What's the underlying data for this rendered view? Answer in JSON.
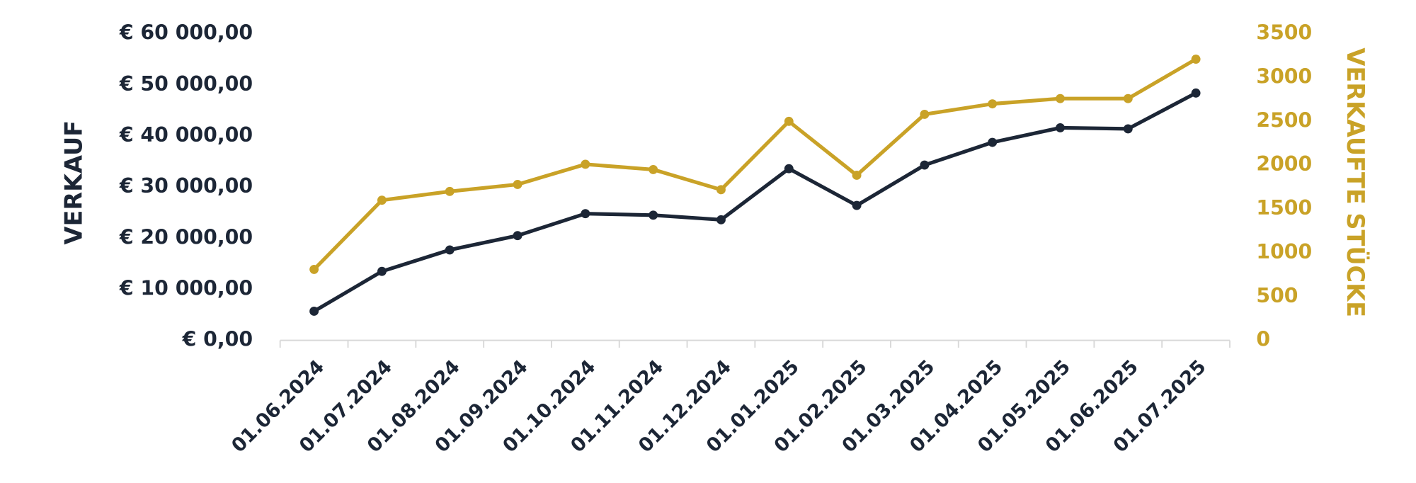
{
  "chart_data": {
    "type": "line",
    "y_axis_label": "VERKAUF",
    "y2_axis_label": "VERKAUFTE STÜCKE",
    "categories": [
      "01.06.2024",
      "01.07.2024",
      "01.08.2024",
      "01.09.2024",
      "01.10.2024",
      "01.11.2024",
      "01.12.2024",
      "01.01.2025",
      "01.02.2025",
      "01.03.2025",
      "01.04.2025",
      "01.05.2025",
      "01.06.2025",
      "01.07.2025"
    ],
    "series": [
      {
        "color": "#1c2636",
        "values": [
          5700,
          13500,
          17700,
          20500,
          24800,
          24500,
          23600,
          33600,
          26400,
          34300,
          38750,
          41600,
          41400,
          48400
        ]
      },
      {
        "color": "#c9a227",
        "axis": "y2",
        "values": [
          810,
          1600,
          1700,
          1780,
          2010,
          1950,
          1720,
          2500,
          1885,
          2580,
          2700,
          2760,
          2760,
          3210
        ]
      }
    ],
    "ylim": [
      0,
      60000
    ],
    "yticks": [
      {
        "value": 0,
        "label": "€ 0,00"
      },
      {
        "value": 10000,
        "label": "€ 10 000,00"
      },
      {
        "value": 20000,
        "label": "€ 20 000,00"
      },
      {
        "value": 30000,
        "label": "€ 30 000,00"
      },
      {
        "value": 40000,
        "label": "€ 40 000,00"
      },
      {
        "value": 50000,
        "label": "€ 50 000,00"
      },
      {
        "value": 60000,
        "label": "€ 60 000,00"
      }
    ],
    "y2lim": [
      0,
      3500
    ],
    "y2ticks": [
      0,
      500,
      1000,
      1500,
      2000,
      2500,
      3000,
      3500
    ],
    "grid": false
  }
}
